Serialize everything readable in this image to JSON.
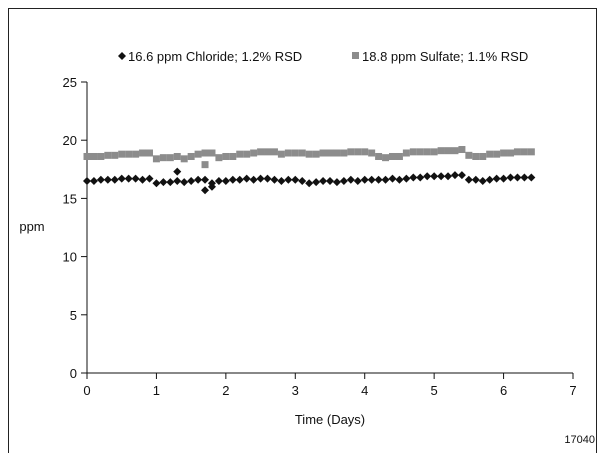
{
  "chart_data": {
    "type": "scatter",
    "xlabel": "Time (Days)",
    "ylabel": "ppm",
    "xlim": [
      0,
      7
    ],
    "ylim": [
      0,
      25
    ],
    "xticks": [
      0,
      1,
      2,
      3,
      4,
      5,
      6,
      7
    ],
    "yticks": [
      0,
      5,
      10,
      15,
      20,
      25
    ],
    "grid": false,
    "legend_position": "top",
    "series": [
      {
        "name": "16.6 ppm Chloride; 1.2% RSD",
        "marker": "diamond",
        "color": "#111111",
        "x": [
          0.0,
          0.1,
          0.2,
          0.3,
          0.4,
          0.5,
          0.6,
          0.7,
          0.8,
          0.9,
          1.0,
          1.1,
          1.2,
          1.3,
          1.4,
          1.5,
          1.6,
          1.7,
          1.8,
          1.9,
          2.0,
          2.1,
          2.2,
          2.3,
          2.4,
          2.5,
          2.6,
          2.7,
          2.8,
          2.9,
          3.0,
          3.1,
          3.2,
          3.3,
          3.4,
          3.5,
          3.6,
          3.7,
          3.8,
          3.9,
          4.0,
          4.1,
          4.2,
          4.3,
          4.4,
          4.5,
          4.6,
          4.7,
          4.8,
          4.9,
          5.0,
          5.1,
          5.2,
          5.3,
          5.4,
          5.5,
          5.6,
          5.7,
          5.8,
          5.9,
          6.0,
          6.1,
          6.2,
          6.3,
          6.4,
          1.3,
          1.7,
          1.8
        ],
        "y": [
          16.5,
          16.5,
          16.6,
          16.6,
          16.6,
          16.7,
          16.7,
          16.7,
          16.6,
          16.7,
          16.3,
          16.4,
          16.4,
          16.5,
          16.4,
          16.5,
          16.6,
          16.6,
          16.3,
          16.5,
          16.5,
          16.6,
          16.6,
          16.7,
          16.6,
          16.7,
          16.7,
          16.6,
          16.5,
          16.6,
          16.6,
          16.5,
          16.3,
          16.4,
          16.5,
          16.5,
          16.4,
          16.5,
          16.6,
          16.5,
          16.6,
          16.6,
          16.6,
          16.6,
          16.7,
          16.6,
          16.7,
          16.8,
          16.8,
          16.9,
          16.9,
          16.9,
          16.9,
          17.0,
          17.0,
          16.6,
          16.6,
          16.5,
          16.6,
          16.7,
          16.7,
          16.8,
          16.8,
          16.8,
          16.8,
          17.3,
          15.7,
          16.0
        ]
      },
      {
        "name": "18.8 ppm Sulfate; 1.1% RSD",
        "marker": "square",
        "color": "#8c8c8c",
        "x": [
          0.0,
          0.1,
          0.2,
          0.3,
          0.4,
          0.5,
          0.6,
          0.7,
          0.8,
          0.9,
          1.0,
          1.1,
          1.2,
          1.3,
          1.4,
          1.5,
          1.6,
          1.7,
          1.8,
          1.9,
          2.0,
          2.1,
          2.2,
          2.3,
          2.4,
          2.5,
          2.6,
          2.7,
          2.8,
          2.9,
          3.0,
          3.1,
          3.2,
          3.3,
          3.4,
          3.5,
          3.6,
          3.7,
          3.8,
          3.9,
          4.0,
          4.1,
          4.2,
          4.3,
          4.4,
          4.5,
          4.6,
          4.7,
          4.8,
          4.9,
          5.0,
          5.1,
          5.2,
          5.3,
          5.4,
          5.5,
          5.6,
          5.7,
          5.8,
          5.9,
          6.0,
          6.1,
          6.2,
          6.3,
          6.4,
          1.7
        ],
        "y": [
          18.6,
          18.6,
          18.6,
          18.7,
          18.7,
          18.8,
          18.8,
          18.8,
          18.9,
          18.9,
          18.4,
          18.5,
          18.5,
          18.6,
          18.4,
          18.6,
          18.8,
          18.9,
          18.9,
          18.5,
          18.6,
          18.6,
          18.8,
          18.8,
          18.9,
          19.0,
          19.0,
          19.0,
          18.8,
          18.9,
          18.9,
          18.9,
          18.8,
          18.8,
          18.9,
          18.9,
          18.9,
          18.9,
          19.0,
          19.0,
          19.0,
          18.9,
          18.6,
          18.5,
          18.6,
          18.6,
          18.9,
          19.0,
          19.0,
          19.0,
          19.0,
          19.1,
          19.1,
          19.1,
          19.2,
          18.7,
          18.6,
          18.6,
          18.8,
          18.8,
          18.9,
          18.9,
          19.0,
          19.0,
          19.0,
          17.9
        ]
      }
    ]
  },
  "figure_id": "17040"
}
